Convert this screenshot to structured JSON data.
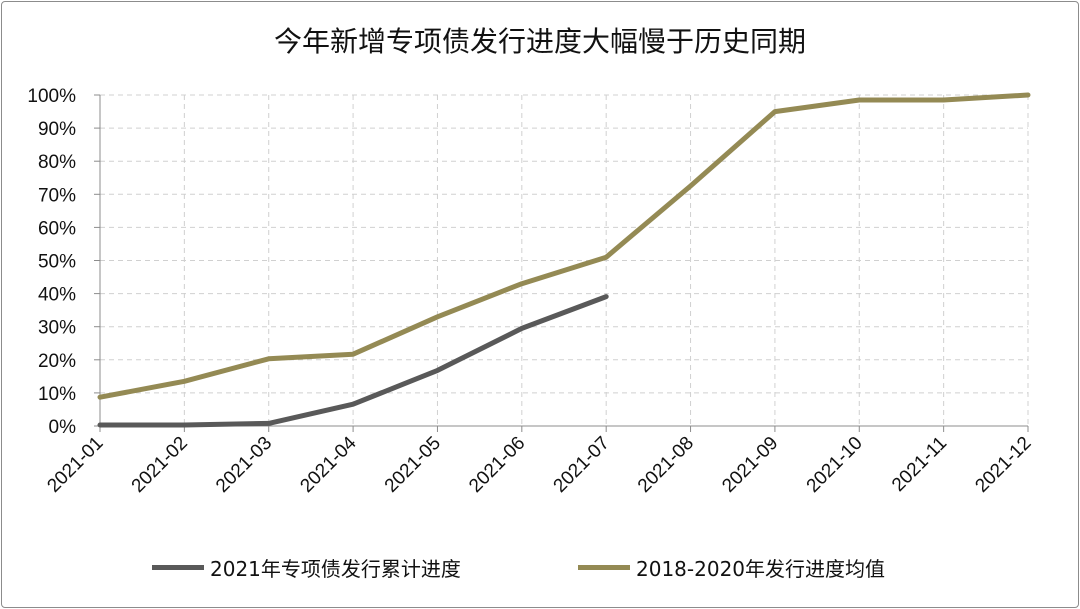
{
  "chart_data": {
    "type": "line",
    "title": "今年新增专项债发行进度大幅慢于历史同期",
    "categories": [
      "2021-01",
      "2021-02",
      "2021-03",
      "2021-04",
      "2021-05",
      "2021-06",
      "2021-07",
      "2021-08",
      "2021-09",
      "2021-10",
      "2021-11",
      "2021-12"
    ],
    "y_ticks": [
      "0%",
      "10%",
      "20%",
      "30%",
      "40%",
      "50%",
      "60%",
      "70%",
      "80%",
      "90%",
      "100%"
    ],
    "ylim": [
      0,
      100
    ],
    "y_unit": "%",
    "grid": true,
    "legend_position": "bottom",
    "series": [
      {
        "name": "2021年专项债发行累计进度",
        "color": "#595959",
        "values": [
          0.3,
          0.3,
          0.8,
          6.6,
          16.8,
          29.5,
          39.1,
          null,
          null,
          null,
          null,
          null
        ]
      },
      {
        "name": "2018-2020年发行进度均值",
        "color": "#948a54",
        "values": [
          8.7,
          13.5,
          20.3,
          21.7,
          33.0,
          43.0,
          51.0,
          72.5,
          95.0,
          98.5,
          98.5,
          100.0
        ]
      }
    ]
  }
}
